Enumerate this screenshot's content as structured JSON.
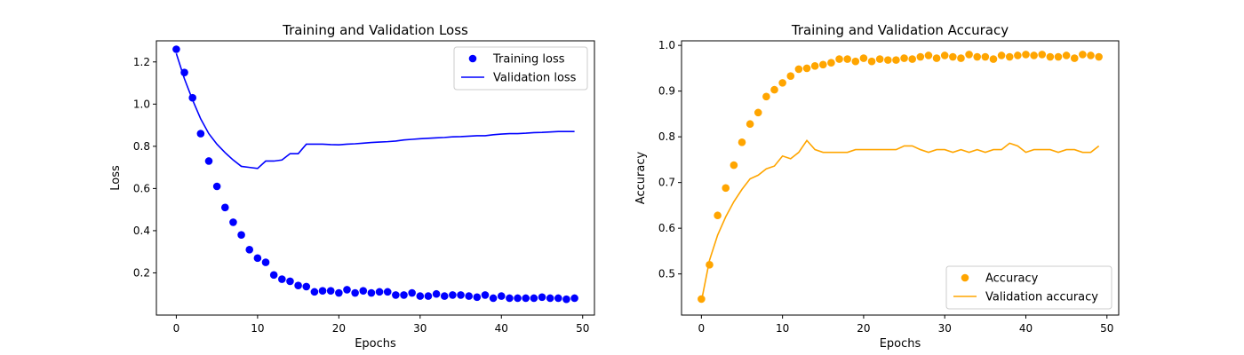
{
  "chart_data": [
    {
      "type": "scatter+line",
      "title": "Training and Validation Loss",
      "xlabel": "Epochs",
      "ylabel": "Loss",
      "xlim": [
        -2.45,
        51.45
      ],
      "ylim": [
        0.0,
        1.3
      ],
      "xticks": [
        0,
        10,
        20,
        30,
        40,
        50
      ],
      "yticks": [
        0.2,
        0.4,
        0.6,
        0.8,
        1.0,
        1.2
      ],
      "grid": false,
      "legend_position": "top-right",
      "x": [
        0,
        1,
        2,
        3,
        4,
        5,
        6,
        7,
        8,
        9,
        10,
        11,
        12,
        13,
        14,
        15,
        16,
        17,
        18,
        19,
        20,
        21,
        22,
        23,
        24,
        25,
        26,
        27,
        28,
        29,
        30,
        31,
        32,
        33,
        34,
        35,
        36,
        37,
        38,
        39,
        40,
        41,
        42,
        43,
        44,
        45,
        46,
        47,
        48,
        49
      ],
      "series": [
        {
          "name": "Training loss",
          "kind": "scatter",
          "color": "#0000ff",
          "values": [
            1.26,
            1.15,
            1.03,
            0.86,
            0.73,
            0.61,
            0.51,
            0.44,
            0.38,
            0.31,
            0.27,
            0.25,
            0.19,
            0.17,
            0.16,
            0.14,
            0.135,
            0.11,
            0.115,
            0.115,
            0.105,
            0.12,
            0.105,
            0.115,
            0.105,
            0.11,
            0.11,
            0.095,
            0.095,
            0.105,
            0.09,
            0.09,
            0.1,
            0.09,
            0.095,
            0.095,
            0.09,
            0.085,
            0.095,
            0.08,
            0.09,
            0.08,
            0.08,
            0.08,
            0.08,
            0.085,
            0.08,
            0.08,
            0.075,
            0.08
          ]
        },
        {
          "name": "Validation loss",
          "kind": "line",
          "color": "#0000ff",
          "values": [
            1.24,
            1.12,
            1.02,
            0.93,
            0.86,
            0.81,
            0.77,
            0.735,
            0.705,
            0.7,
            0.695,
            0.73,
            0.73,
            0.735,
            0.765,
            0.765,
            0.81,
            0.81,
            0.81,
            0.808,
            0.807,
            0.81,
            0.812,
            0.815,
            0.818,
            0.82,
            0.822,
            0.825,
            0.83,
            0.833,
            0.836,
            0.838,
            0.84,
            0.842,
            0.845,
            0.846,
            0.848,
            0.85,
            0.85,
            0.855,
            0.858,
            0.86,
            0.86,
            0.862,
            0.865,
            0.866,
            0.868,
            0.87,
            0.87,
            0.87
          ]
        }
      ]
    },
    {
      "type": "scatter+line",
      "title": "Training and Validation Accuracy",
      "xlabel": "Epochs",
      "ylabel": "Accuracy",
      "xlim": [
        -2.45,
        51.45
      ],
      "ylim": [
        0.41,
        1.01
      ],
      "xticks": [
        0,
        10,
        20,
        30,
        40,
        50
      ],
      "yticks": [
        0.5,
        0.6,
        0.7,
        0.8,
        0.9,
        1.0
      ],
      "grid": false,
      "legend_position": "bottom-right",
      "x": [
        0,
        1,
        2,
        3,
        4,
        5,
        6,
        7,
        8,
        9,
        10,
        11,
        12,
        13,
        14,
        15,
        16,
        17,
        18,
        19,
        20,
        21,
        22,
        23,
        24,
        25,
        26,
        27,
        28,
        29,
        30,
        31,
        32,
        33,
        34,
        35,
        36,
        37,
        38,
        39,
        40,
        41,
        42,
        43,
        44,
        45,
        46,
        47,
        48,
        49
      ],
      "series": [
        {
          "name": "Accuracy",
          "kind": "scatter",
          "color": "#ffa500",
          "values": [
            0.445,
            0.52,
            0.628,
            0.688,
            0.738,
            0.788,
            0.828,
            0.853,
            0.888,
            0.903,
            0.918,
            0.933,
            0.948,
            0.95,
            0.955,
            0.958,
            0.962,
            0.97,
            0.97,
            0.965,
            0.972,
            0.965,
            0.97,
            0.968,
            0.968,
            0.972,
            0.97,
            0.975,
            0.978,
            0.972,
            0.978,
            0.975,
            0.972,
            0.98,
            0.975,
            0.975,
            0.97,
            0.978,
            0.975,
            0.978,
            0.98,
            0.978,
            0.98,
            0.975,
            0.975,
            0.978,
            0.972,
            0.98,
            0.978,
            0.975
          ]
        },
        {
          "name": "Validation accuracy",
          "kind": "line",
          "color": "#ffa500",
          "values": [
            0.44,
            0.53,
            0.585,
            0.625,
            0.658,
            0.685,
            0.708,
            0.716,
            0.73,
            0.736,
            0.758,
            0.752,
            0.766,
            0.792,
            0.772,
            0.766,
            0.766,
            0.766,
            0.766,
            0.772,
            0.772,
            0.772,
            0.772,
            0.772,
            0.772,
            0.78,
            0.78,
            0.772,
            0.766,
            0.772,
            0.772,
            0.766,
            0.772,
            0.766,
            0.772,
            0.766,
            0.772,
            0.772,
            0.786,
            0.78,
            0.766,
            0.772,
            0.772,
            0.772,
            0.766,
            0.772,
            0.772,
            0.766,
            0.766,
            0.78
          ]
        }
      ]
    }
  ]
}
